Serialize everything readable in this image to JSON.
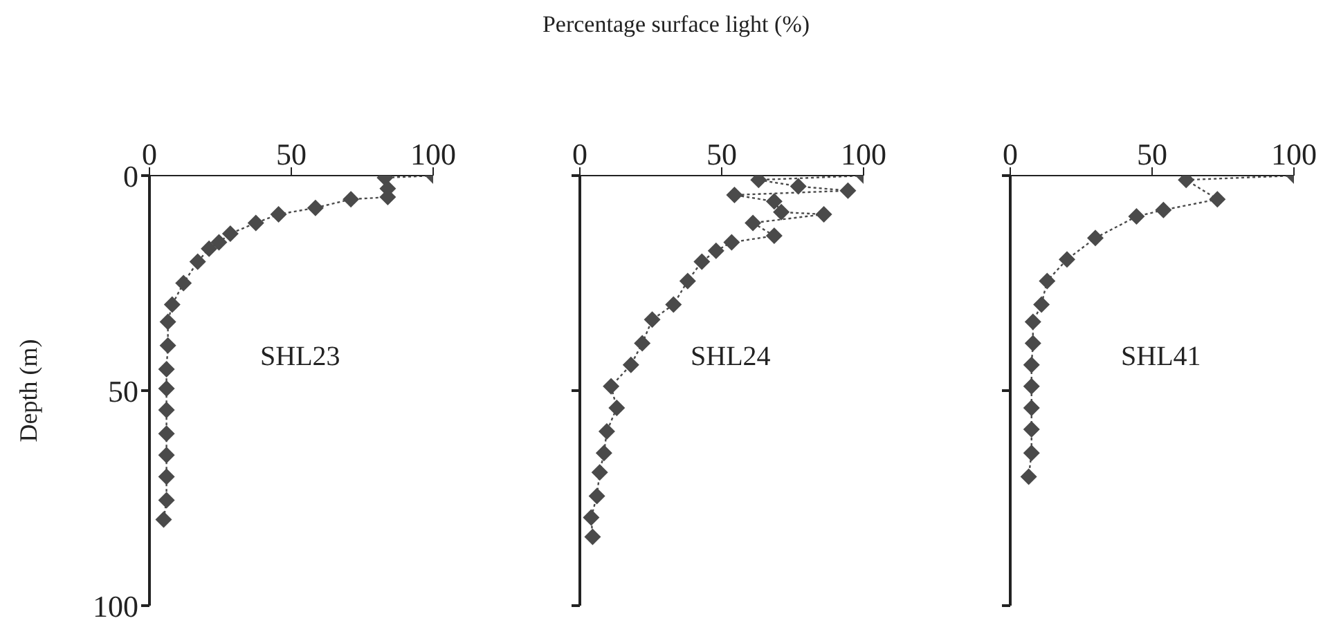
{
  "chart_data": [
    {
      "type": "line",
      "ylabel": "Depth (m)",
      "annotations": [
        "SHL23"
      ],
      "xlim": [
        0,
        100
      ],
      "xticks": [
        0,
        50,
        100
      ],
      "ylim": [
        100,
        0
      ],
      "yticks": [
        0,
        50,
        100
      ],
      "marker": "diamond",
      "line_style": "dotted",
      "series": [
        {
          "color": "#4a4a4a",
          "x": [
            100,
            83,
            84,
            84,
            71,
            58.5,
            45.5,
            37.5,
            28.5,
            24.5,
            21,
            17,
            12,
            8,
            6.5,
            6.5,
            6,
            6,
            6,
            6,
            6,
            6,
            6,
            5
          ],
          "values": [
            0,
            0.5,
            3,
            5,
            5.5,
            7.5,
            9,
            11,
            13.5,
            15.5,
            17,
            20,
            25,
            30,
            34,
            39.5,
            45,
            49.5,
            54.5,
            60,
            65,
            70,
            75.5,
            80
          ]
        }
      ]
    },
    {
      "type": "line",
      "xlabel": "Percentage surface light (%)",
      "annotations": [
        "SHL24"
      ],
      "xlim": [
        0,
        100
      ],
      "xticks": [
        0,
        50,
        100
      ],
      "ylim": [
        100,
        0
      ],
      "yticks": [
        0,
        50,
        100
      ],
      "tick_labels": "x",
      "marker": "diamond",
      "line_style": "dotted",
      "series": [
        {
          "color": "#4a4a4a",
          "x": [
            100,
            63,
            77,
            94.5,
            54.5,
            68.5,
            71,
            86,
            61,
            68.5,
            53.5,
            48,
            43,
            38,
            33,
            25.5,
            22,
            18,
            11,
            13,
            9.5,
            8.5,
            7,
            6,
            4,
            4.5
          ],
          "values": [
            0,
            1,
            2.5,
            3.5,
            4.5,
            6,
            8.5,
            9,
            11,
            14,
            15.5,
            17.5,
            20,
            24.5,
            30,
            33.5,
            39,
            44,
            49,
            54,
            59.5,
            64.5,
            69,
            74.5,
            79.5,
            84
          ]
        }
      ]
    },
    {
      "type": "line",
      "annotations": [
        "SHL41"
      ],
      "xlim": [
        0,
        100
      ],
      "xticks": [
        0,
        50,
        100
      ],
      "ylim": [
        100,
        0
      ],
      "yticks": [
        0,
        50,
        100
      ],
      "tick_labels": "x",
      "marker": "diamond",
      "line_style": "dotted",
      "series": [
        {
          "color": "#4a4a4a",
          "x": [
            100,
            62,
            73,
            54,
            44.5,
            30,
            20,
            13,
            11,
            8,
            8,
            7.5,
            7.5,
            7.5,
            7.5,
            7.5,
            6.5
          ],
          "values": [
            0,
            1,
            5.5,
            8,
            9.5,
            14.5,
            19.5,
            24.5,
            30,
            34,
            39,
            44,
            49,
            54,
            59,
            64.5,
            70
          ]
        }
      ]
    }
  ]
}
